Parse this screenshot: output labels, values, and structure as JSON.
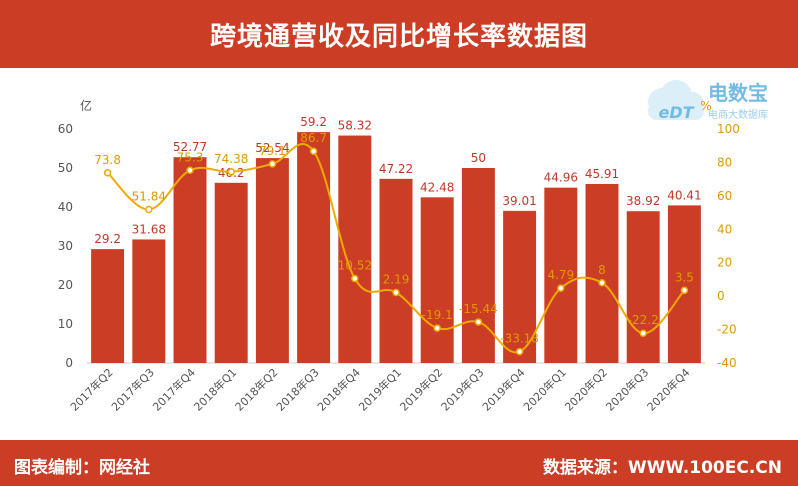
{
  "header": {
    "title": "跨境通营收及同比增长率数据图"
  },
  "footer": {
    "left": "图表编制：网经社",
    "right": "数据来源：WWW.100EC.CN"
  },
  "watermark": {
    "logo_text": "eDT",
    "brand": "电数宝",
    "tagline": "电商大数据库"
  },
  "colors": {
    "bar": "#cb3d25",
    "line": "#f2a900",
    "header": "#cb3d25",
    "axis_text": "#555555"
  },
  "chart_data": {
    "type": "bar",
    "categories": [
      "2017年Q2",
      "2017年Q3",
      "2017年Q4",
      "2018年Q1",
      "2018年Q2",
      "2018年Q3",
      "2018年Q4",
      "2019年Q1",
      "2019年Q2",
      "2019年Q3",
      "2019年Q4",
      "2020年Q1",
      "2020年Q2",
      "2020年Q3",
      "2020年Q4"
    ],
    "series": [
      {
        "type": "bar",
        "axis": "left",
        "values": [
          29.2,
          31.68,
          52.77,
          46.2,
          52.54,
          59.2,
          58.32,
          47.22,
          42.48,
          50,
          39.01,
          44.96,
          45.91,
          38.92,
          40.41
        ]
      },
      {
        "type": "line",
        "axis": "right",
        "values": [
          73.8,
          51.84,
          75.3,
          74.38,
          79.1,
          86.7,
          10.52,
          2.19,
          -19.1,
          -15.44,
          -33.18,
          4.79,
          8,
          -22.2,
          3.5
        ]
      }
    ],
    "bar_labels": [
      "29.2",
      "31.68",
      "52.77",
      "46.2",
      "52.54",
      "59.2",
      "58.32",
      "47.22",
      "42.48",
      "50",
      "39.01",
      "44.96",
      "45.91",
      "38.92",
      "40.41"
    ],
    "line_labels": [
      "73.8",
      "51.84",
      "75.3",
      "74.38",
      "79.1",
      "86.7",
      "10.52",
      "2.19",
      "-19.1",
      "-15.44",
      "-33.18",
      "4.79",
      "8",
      "-22.2",
      "3.5"
    ],
    "ylabel_left": "亿",
    "ylabel_right": "%",
    "ylim_left": [
      0,
      60
    ],
    "yticks_left": [
      0,
      10,
      20,
      30,
      40,
      50,
      60
    ],
    "ylim_right": [
      -40,
      100
    ],
    "yticks_right": [
      -40,
      -20,
      0,
      20,
      40,
      60,
      80,
      100
    ],
    "grid": false,
    "legend": "none"
  }
}
